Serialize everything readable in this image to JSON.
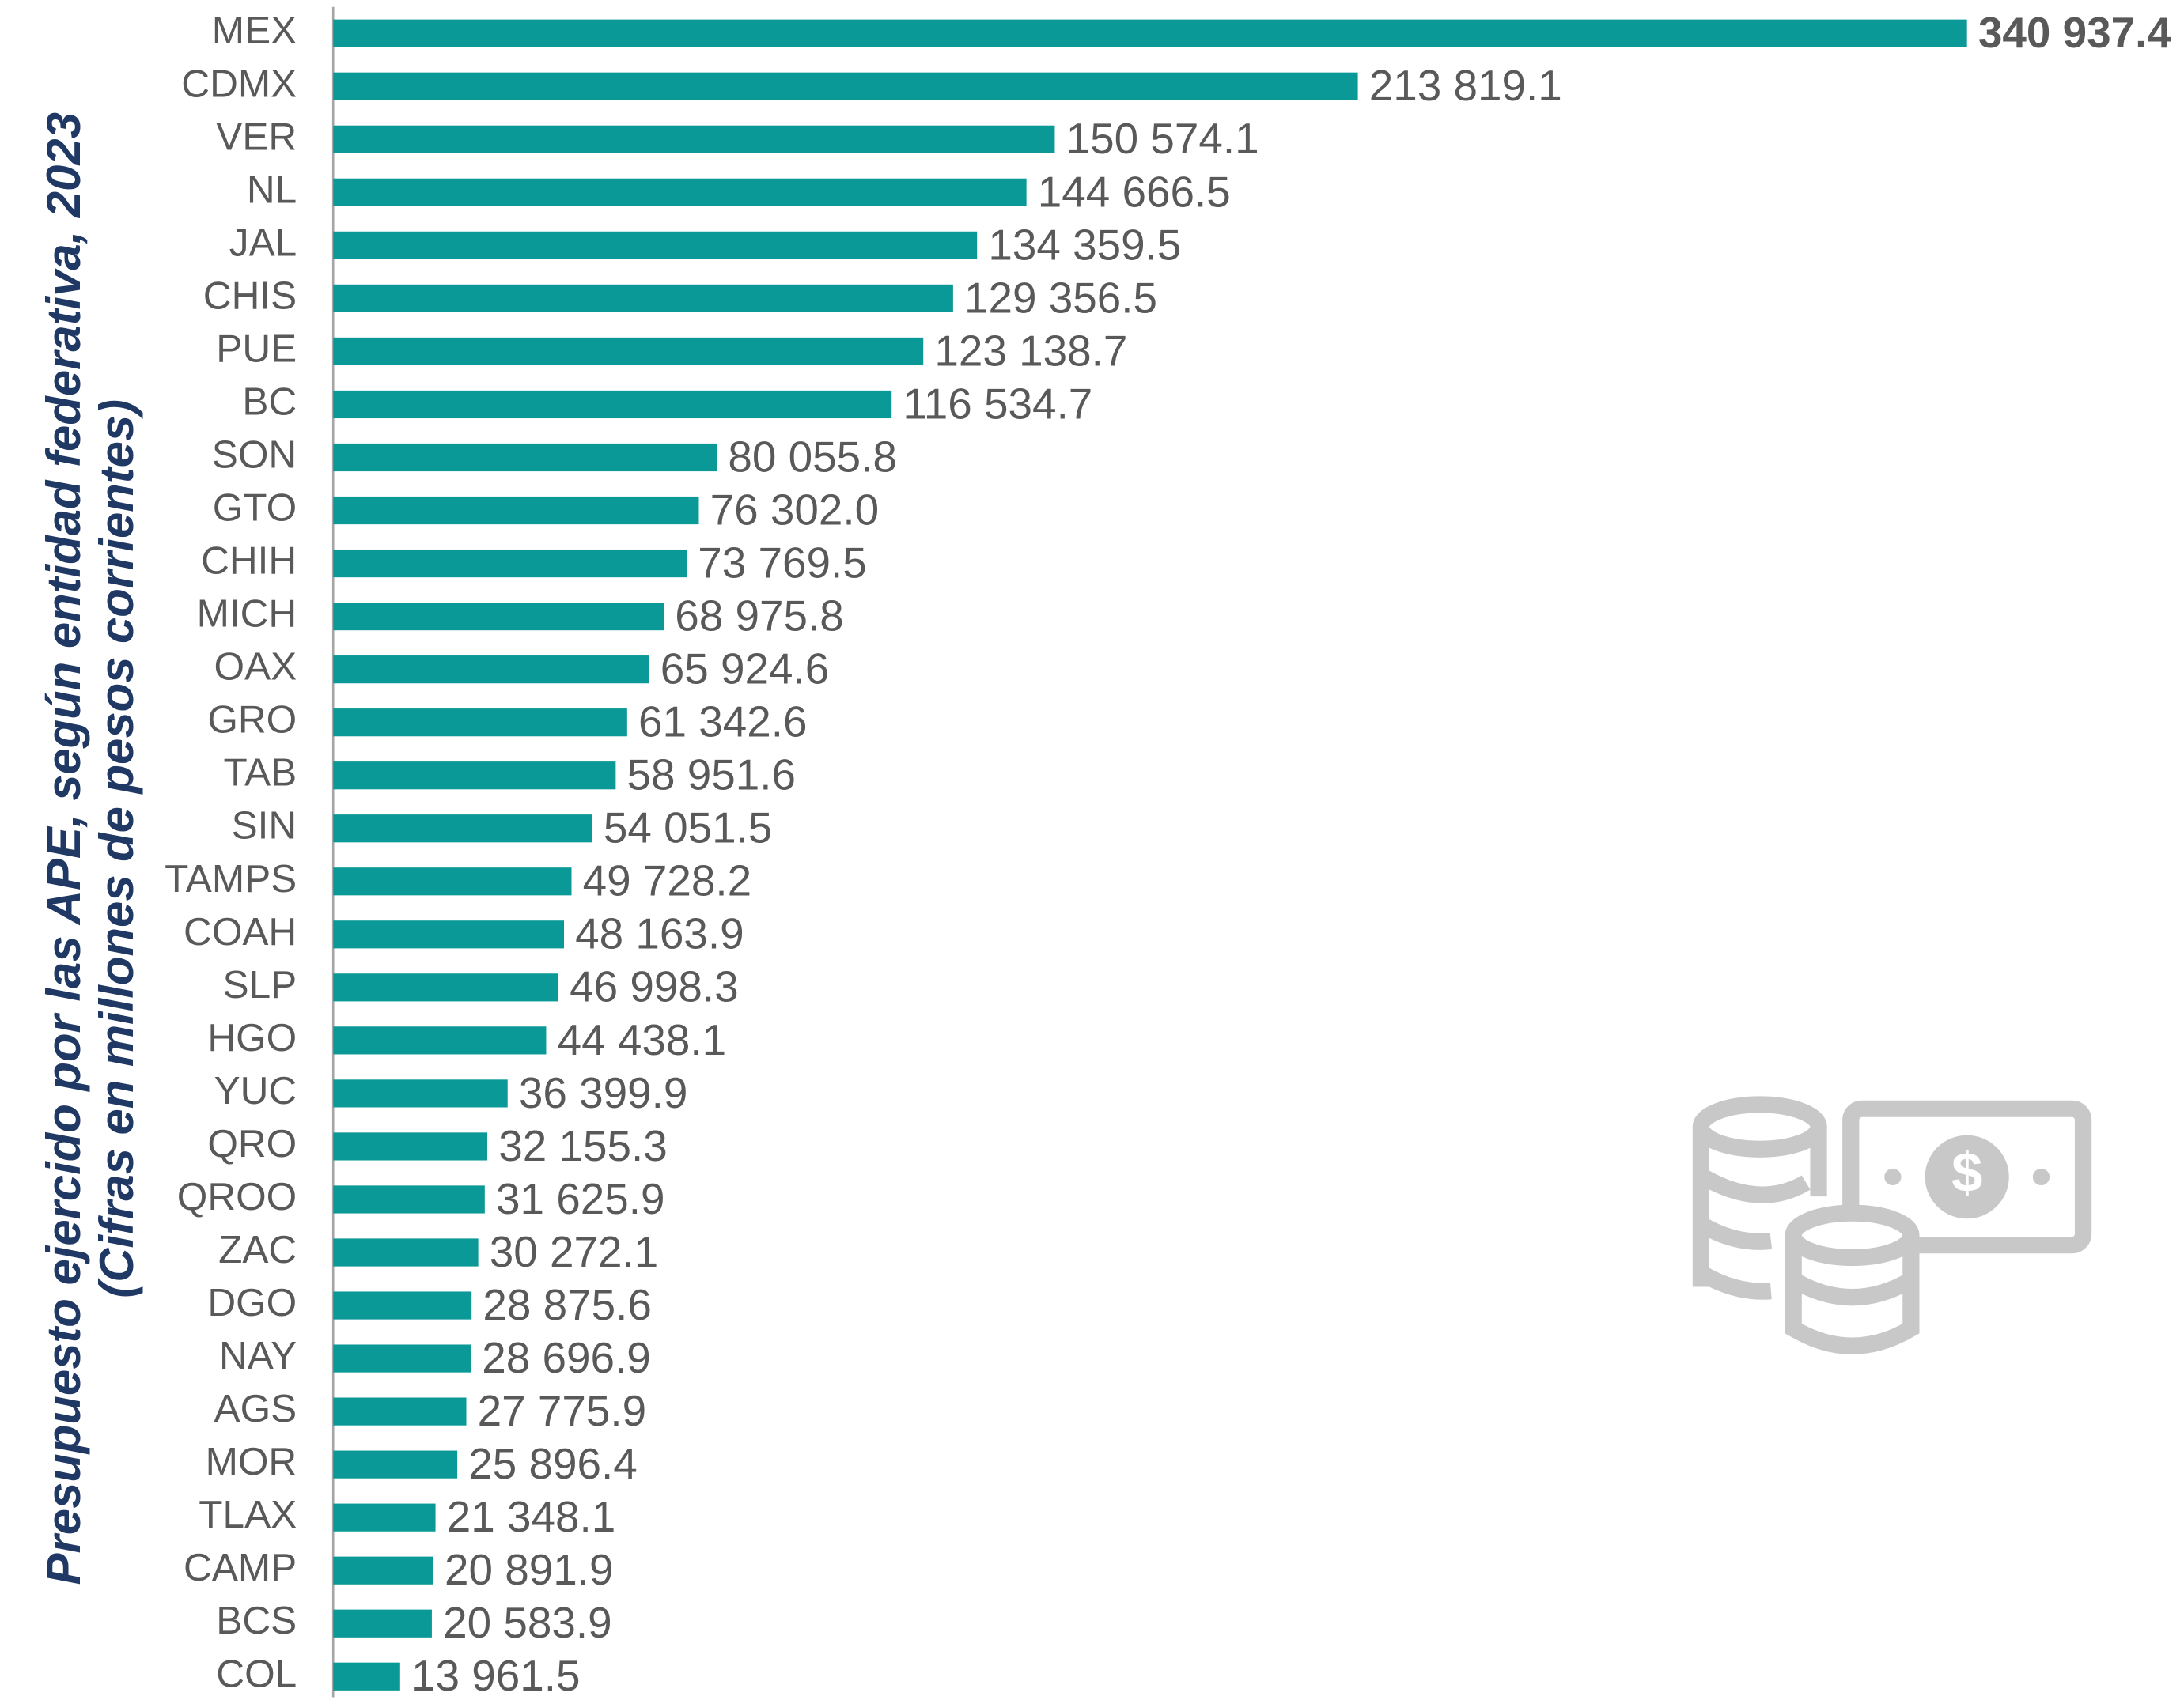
{
  "chart_data": {
    "type": "bar",
    "orientation": "horizontal",
    "title": "Presupuesto ejercido por las APE, según entidad federativa, 2023",
    "subtitle": "(Cifras en millones de pesos corrientes)",
    "color": "#0a9996",
    "categories": [
      "MEX",
      "CDMX",
      "VER",
      "NL",
      "JAL",
      "CHIS",
      "PUE",
      "BC",
      "SON",
      "GTO",
      "CHIH",
      "MICH",
      "OAX",
      "GRO",
      "TAB",
      "SIN",
      "TAMPS",
      "COAH",
      "SLP",
      "HGO",
      "YUC",
      "QRO",
      "QROO",
      "ZAC",
      "DGO",
      "NAY",
      "AGS",
      "MOR",
      "TLAX",
      "CAMP",
      "BCS",
      "COL"
    ],
    "values": [
      340937.4,
      213819.1,
      150574.1,
      144666.5,
      134359.5,
      129356.5,
      123138.7,
      116534.7,
      80055.8,
      76302.0,
      73769.5,
      68975.8,
      65924.6,
      61342.6,
      58951.6,
      54051.5,
      49728.2,
      48163.9,
      46998.3,
      44438.1,
      36399.9,
      32155.3,
      31625.9,
      30272.1,
      28875.6,
      28696.9,
      27775.9,
      25896.4,
      21348.1,
      20891.9,
      20583.9,
      13961.5
    ],
    "value_labels": [
      "340 937.4",
      "213 819.1",
      "150 574.1",
      "144 666.5",
      "134 359.5",
      "129 356.5",
      "123 138.7",
      "116 534.7",
      "80 055.8",
      "76 302.0",
      "73 769.5",
      "68 975.8",
      "65 924.6",
      "61 342.6",
      "58 951.6",
      "54 051.5",
      "49 728.2",
      "48 163.9",
      "46 998.3",
      "44 438.1",
      "36 399.9",
      "32 155.3",
      "31 625.9",
      "30 272.1",
      "28 875.6",
      "28 696.9",
      "27 775.9",
      "25 896.4",
      "21 348.1",
      "20 891.9",
      "20 583.9",
      "13 961.5"
    ]
  }
}
